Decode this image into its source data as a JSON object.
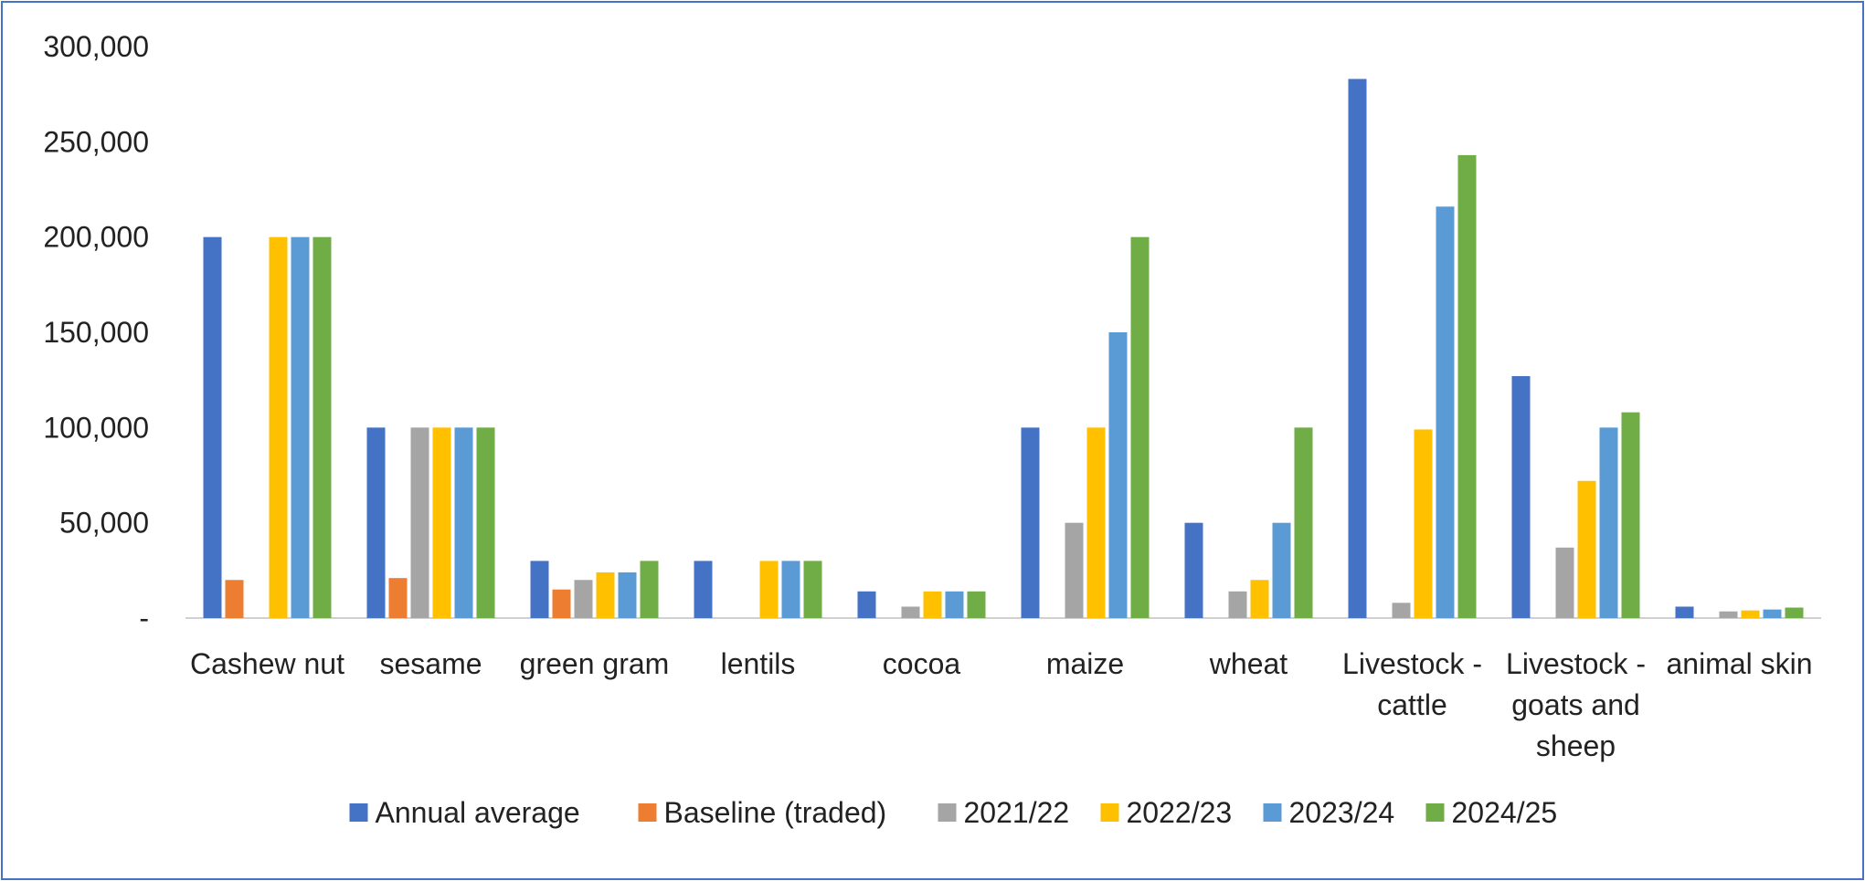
{
  "chart_data": {
    "type": "bar",
    "title": "",
    "xlabel": "",
    "ylabel": "",
    "ylim": [
      0,
      300000
    ],
    "yticks": [
      0,
      50000,
      100000,
      150000,
      200000,
      250000,
      300000
    ],
    "ytick_labels": [
      "-",
      "50,000",
      "100,000",
      "150,000",
      "200,000",
      "250,000",
      "300,000"
    ],
    "grid": false,
    "legend_position": "bottom",
    "categories": [
      [
        "Cashew nut"
      ],
      [
        "sesame"
      ],
      [
        "green gram"
      ],
      [
        "lentils"
      ],
      [
        "cocoa"
      ],
      [
        "maize"
      ],
      [
        "wheat"
      ],
      [
        "Livestock -",
        "cattle"
      ],
      [
        "Livestock -",
        "goats and",
        "sheep"
      ],
      [
        "animal skin"
      ]
    ],
    "series": [
      {
        "name": "Annual average",
        "color": "#4472c4",
        "values": [
          200000,
          100000,
          30000,
          30000,
          14000,
          100000,
          50000,
          283000,
          127000,
          6000
        ]
      },
      {
        "name": "Baseline (traded)",
        "color": "#ed7d31",
        "values": [
          20000,
          21000,
          15000,
          0,
          0,
          0,
          0,
          0,
          0,
          0
        ]
      },
      {
        "name": "2021/22",
        "color": "#a5a5a5",
        "values": [
          0,
          100000,
          20000,
          0,
          6000,
          50000,
          14000,
          8000,
          37000,
          3500
        ]
      },
      {
        "name": "2022/23",
        "color": "#ffc000",
        "values": [
          200000,
          100000,
          24000,
          30000,
          14000,
          100000,
          20000,
          99000,
          72000,
          4000
        ]
      },
      {
        "name": "2023/24",
        "color": "#5b9bd5",
        "values": [
          200000,
          100000,
          24000,
          30000,
          14000,
          150000,
          50000,
          216000,
          100000,
          4500
        ]
      },
      {
        "name": "2024/25",
        "color": "#70ad47",
        "values": [
          200000,
          100000,
          30000,
          30000,
          14000,
          200000,
          100000,
          243000,
          108000,
          5500
        ]
      }
    ]
  }
}
